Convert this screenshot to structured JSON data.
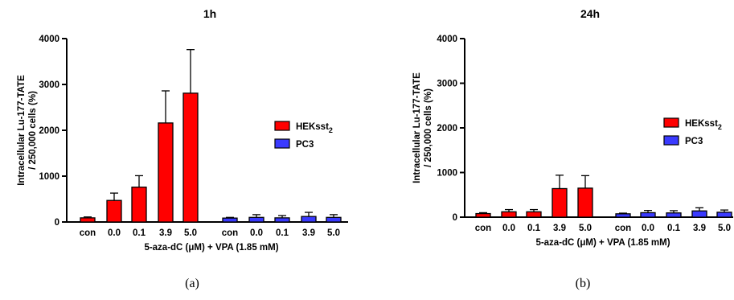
{
  "chart_data": [
    {
      "type": "bar",
      "title": "1h",
      "panel_label": "(a)",
      "xlabel": "5-aza-dC (μM) + VPA (1.85 mM)",
      "ylabel_lines": [
        "Intracellular Lu-177-TATE",
        "/ 250,000 cells (%)"
      ],
      "ylim": [
        0,
        4000
      ],
      "yticks": [
        0,
        1000,
        2000,
        3000,
        4000
      ],
      "groups": [
        {
          "series": "HEKsst2",
          "color": "#ff0000",
          "categories": [
            "con",
            "0.0",
            "0.1",
            "3.9",
            "5.0"
          ],
          "values": [
            90,
            470,
            760,
            2160,
            2810
          ],
          "errors": [
            20,
            160,
            250,
            700,
            950
          ]
        },
        {
          "series": "PC3",
          "color": "#3a3aff",
          "categories": [
            "con",
            "0.0",
            "0.1",
            "3.9",
            "5.0"
          ],
          "values": [
            85,
            100,
            90,
            120,
            100
          ],
          "errors": [
            15,
            60,
            50,
            90,
            60
          ]
        }
      ],
      "legend": [
        {
          "name": "HEKsst",
          "sub": "2",
          "color": "#ff0000"
        },
        {
          "name": "PC3",
          "sub": "",
          "color": "#3a3aff"
        }
      ]
    },
    {
      "type": "bar",
      "title": "24h",
      "panel_label": "(b)",
      "xlabel": "5-aza-dC (μM) + VPA (1.85 mM)",
      "ylabel_lines": [
        "Intracellular Lu-177-TATE",
        "/ 250,000 cells (%)"
      ],
      "ylim": [
        0,
        4000
      ],
      "yticks": [
        0,
        1000,
        2000,
        3000,
        4000
      ],
      "groups": [
        {
          "series": "HEKsst2",
          "color": "#ff0000",
          "categories": [
            "con",
            "0.0",
            "0.1",
            "3.9",
            "5.0"
          ],
          "values": [
            80,
            120,
            120,
            640,
            650
          ],
          "errors": [
            20,
            50,
            50,
            300,
            280
          ]
        },
        {
          "series": "PC3",
          "color": "#3a3aff",
          "categories": [
            "con",
            "0.0",
            "0.1",
            "3.9",
            "5.0"
          ],
          "values": [
            75,
            100,
            95,
            140,
            110
          ],
          "errors": [
            15,
            50,
            50,
            70,
            50
          ]
        }
      ],
      "legend": [
        {
          "name": "HEKsst",
          "sub": "2",
          "color": "#ff0000"
        },
        {
          "name": "PC3",
          "sub": "",
          "color": "#3a3aff"
        }
      ]
    }
  ]
}
